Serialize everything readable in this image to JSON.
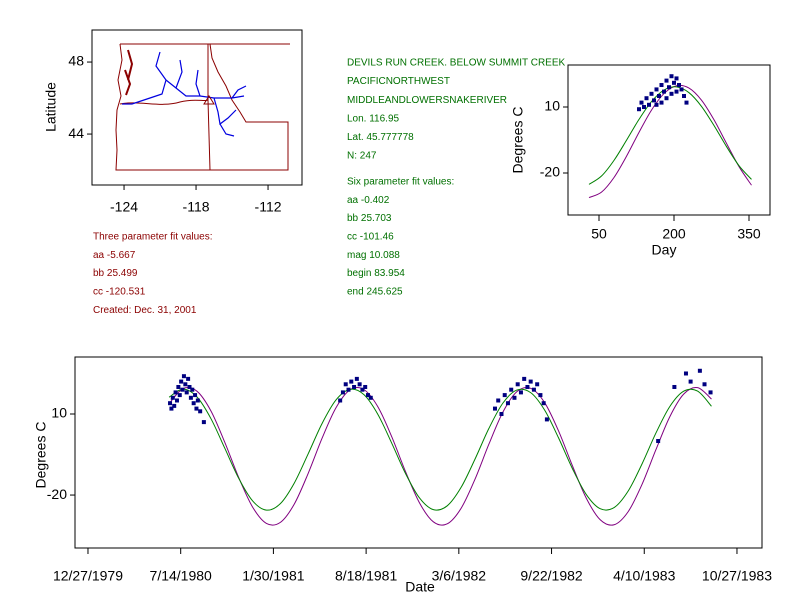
{
  "map": {
    "ylabel": "Latitude",
    "xlim": [
      -126.67,
      -109.17
    ],
    "ylim": [
      41.17,
      49.78
    ],
    "xticks": [
      -124,
      -118,
      -112
    ],
    "yticks": [
      48,
      44
    ]
  },
  "station": {
    "lines": [
      "DEVILS RUN CREEK. BELOW SUMMIT CREEK",
      "PACIFICNORTHWEST",
      "MIDDLEANDLOWERSNAKERIVER",
      "Lon. 116.95",
      "Lat. 45.777778",
      "N: 247"
    ],
    "six_param": [
      "Six parameter fit values:",
      "aa -0.402",
      "bb 25.703",
      "cc -101.46",
      "mag 10.088",
      "begin 83.954",
      "end 245.625"
    ]
  },
  "three_param": [
    "Three parameter fit values:",
    "aa -5.667",
    "bb 25.499",
    "cc -120.531",
    "Created:   Dec. 31, 2001"
  ],
  "chart_data": [
    {
      "type": "scatter",
      "xlabel": "Day",
      "ylabel": "Degrees C",
      "xlim": [
        -12,
        392
      ],
      "ylim": [
        -39.1,
        29.1
      ],
      "xticks": [
        50,
        200,
        350
      ],
      "yticks": [
        10,
        -20
      ],
      "x": [
        30,
        55,
        80,
        105,
        130,
        155,
        180,
        205,
        230,
        255,
        280,
        305,
        330,
        355
      ],
      "series": [
        {
          "color": "#800080",
          "values": [
            -31.16,
            -28.71,
            -22.05,
            -12.4,
            -1.53,
            8.59,
            16.11,
            19.66,
            18.59,
            13.09,
            4.18,
            -6.53,
            -17.08,
            -25.55
          ]
        },
        {
          "color": "#008000",
          "values": [
            -25.18,
            -21.38,
            -14.26,
            -5.13,
            4.36,
            12.47,
            17.72,
            19.15,
            16.51,
            10.28,
            1.58,
            -7.98,
            -16.68,
            -22.91
          ]
        }
      ],
      "points": {
        "color": "#000080",
        "x": [
          130,
          135,
          140,
          145,
          150,
          155,
          160,
          165,
          170,
          175,
          180,
          185,
          190,
          195,
          200,
          205,
          210,
          215,
          220,
          225,
          185,
          195,
          205,
          175,
          165
        ],
        "y": [
          9,
          12,
          10,
          14,
          11,
          16,
          13,
          18,
          15,
          20,
          17,
          22,
          19,
          24,
          21,
          23,
          20,
          18,
          15,
          12,
          14,
          16,
          17,
          12,
          11
        ]
      }
    },
    {
      "type": "scatter",
      "xlabel": "Date",
      "ylabel": "Degrees C",
      "xlim": [
        -28,
        1454
      ],
      "ylim": [
        -39.6,
        31.1
      ],
      "xticks": [
        {
          "value": 0,
          "label": "12/27/1979"
        },
        {
          "value": 200,
          "label": "7/14/1980"
        },
        {
          "value": 400,
          "label": "1/30/1981"
        },
        {
          "value": 600,
          "label": "8/18/1981"
        },
        {
          "value": 800,
          "label": "3/6/1982"
        },
        {
          "value": 1000,
          "label": "9/22/1982"
        },
        {
          "value": 1200,
          "label": "4/10/1983"
        },
        {
          "value": 1400,
          "label": "10/27/1983"
        }
      ],
      "yticks": [
        10,
        -20
      ],
      "x": [
        175,
        205,
        235,
        265,
        295,
        325,
        355,
        385,
        415,
        445,
        475,
        505,
        535,
        565,
        595,
        625,
        655,
        685,
        715,
        745,
        775,
        805,
        835,
        865,
        895,
        925,
        955,
        985,
        1015,
        1045,
        1075,
        1105,
        1135,
        1165,
        1195,
        1225,
        1255,
        1285,
        1315,
        1345
      ],
      "series": [
        {
          "color": "#800080",
          "values": [
            13.81,
            19.39,
            18.45,
            11.22,
            -0.42,
            -13.43,
            -24.41,
            -30.5,
            -30.12,
            -23.35,
            -11.98,
            1.04,
            12.31,
            18.9,
            19.07,
            12.79,
            1.7,
            -11.31,
            -22.86,
            -29.91,
            -30.65,
            -24.87,
            -14.08,
            -1.1,
            10.7,
            18.22,
            19.51,
            14.24,
            3.77,
            -9.15,
            -21.18,
            -29.15,
            -30.99,
            -26.23,
            -16.12,
            -3.27,
            8.95,
            17.36,
            19.76,
            15.53
          ]
        },
        {
          "color": "#008000",
          "values": [
            16.23,
            19.2,
            16.33,
            8.36,
            -2.62,
            -13.75,
            -22.14,
            -25.58,
            -23.18,
            -15.58,
            -4.74,
            6.49,
            15.2,
            19.11,
            17.2,
            9.97,
            -0.7,
            -12.02,
            -21.04,
            -25.4,
            -23.98,
            -17.13,
            -6.66,
            4.72,
            14.03,
            18.85,
            17.92,
            11.48,
            1.2,
            -10.21,
            -19.81,
            -25.06,
            -24.62,
            -18.59,
            -8.55,
            2.89,
            12.74,
            18.43,
            18.48,
            12.87
          ]
        }
      ],
      "points": {
        "color": "#000080",
        "x": [
          177,
          180,
          183,
          186,
          189,
          192,
          195,
          198,
          201,
          204,
          207,
          210,
          213,
          216,
          219,
          222,
          225,
          228,
          231,
          234,
          237,
          242,
          250,
          544,
          550,
          556,
          562,
          568,
          574,
          580,
          586,
          592,
          598,
          604,
          610,
          878,
          885,
          892,
          899,
          906,
          913,
          920,
          927,
          934,
          941,
          948,
          955,
          962,
          969,
          976,
          983,
          990,
          1230,
          1265,
          1290,
          1300,
          1320,
          1330,
          1343
        ],
        "y": [
          14,
          12,
          16,
          13,
          18,
          15,
          20,
          17,
          22,
          19,
          24,
          21,
          18,
          23,
          20,
          16,
          19,
          14,
          17,
          12,
          15,
          11,
          7,
          15,
          18,
          21,
          19,
          22,
          20,
          23,
          21,
          19,
          20,
          17,
          16,
          12,
          15,
          10,
          17,
          14,
          19,
          16,
          21,
          18,
          23,
          20,
          22,
          19,
          21,
          17,
          14,
          8,
          0,
          20,
          25,
          22,
          26,
          21,
          18
        ]
      }
    }
  ]
}
